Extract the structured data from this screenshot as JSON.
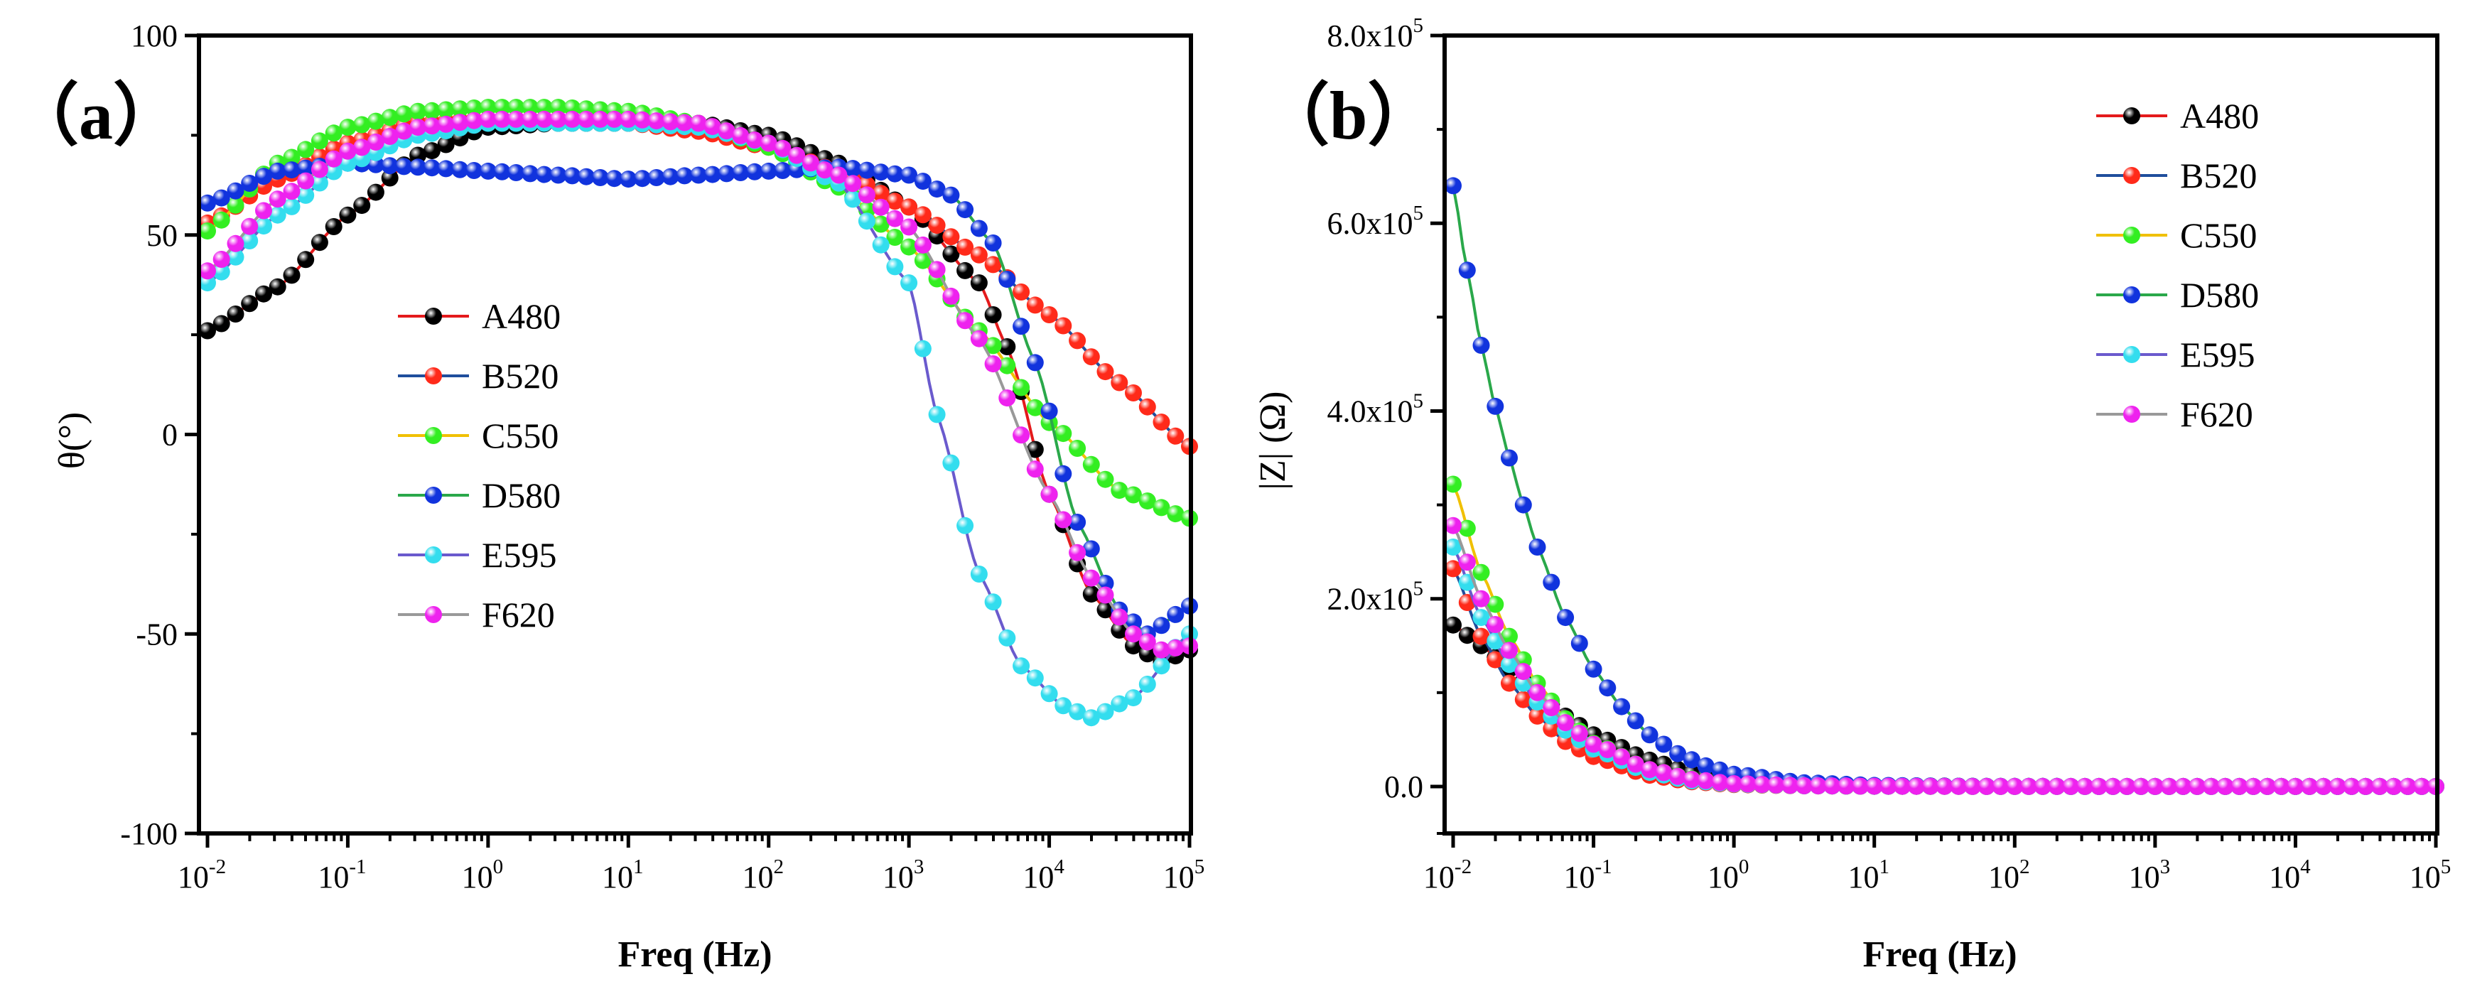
{
  "chart_data": [
    {
      "type": "line",
      "panel_label": "（a）",
      "xlabel": "Freq (Hz)",
      "ylabel": "θ(°)",
      "xscale": "log",
      "xlim": [
        0.01,
        100000
      ],
      "ylim": [
        -100,
        100
      ],
      "y_ticks": [
        -100,
        -50,
        0,
        50,
        100
      ],
      "x_ticks": [
        {
          "base": "10",
          "exp": "-2"
        },
        {
          "base": "10",
          "exp": "-1"
        },
        {
          "base": "10",
          "exp": "0"
        },
        {
          "base": "10",
          "exp": "1"
        },
        {
          "base": "10",
          "exp": "2"
        },
        {
          "base": "10",
          "exp": "3"
        },
        {
          "base": "10",
          "exp": "4"
        },
        {
          "base": "10",
          "exp": "5"
        }
      ],
      "legend_position": "center",
      "series": [
        {
          "name": "A480",
          "line_color": "#e41a1c",
          "marker_color": "#000000",
          "points": [
            [
              -2,
              26
            ],
            [
              -1.5,
              37
            ],
            [
              -1,
              55
            ],
            [
              -0.5,
              70
            ],
            [
              0,
              77
            ],
            [
              0.5,
              78
            ],
            [
              1,
              78
            ],
            [
              1.5,
              78
            ],
            [
              2,
              75
            ],
            [
              2.5,
              68
            ],
            [
              3,
              57
            ],
            [
              3.5,
              38
            ],
            [
              3.7,
              22
            ],
            [
              4,
              -15
            ],
            [
              4.3,
              -40
            ],
            [
              4.6,
              -53
            ],
            [
              4.8,
              -57
            ],
            [
              5,
              -54
            ]
          ]
        },
        {
          "name": "B520",
          "line_color": "#1f4e9c",
          "marker_color": "#ff2a1a",
          "points": [
            [
              -2,
              53
            ],
            [
              -1.5,
              64
            ],
            [
              -1,
              73
            ],
            [
              -0.5,
              78
            ],
            [
              0,
              79
            ],
            [
              0.5,
              79
            ],
            [
              1,
              78
            ],
            [
              1.5,
              76
            ],
            [
              2,
              72
            ],
            [
              2.5,
              66
            ],
            [
              3,
              57
            ],
            [
              3.5,
              45
            ],
            [
              4,
              30
            ],
            [
              4.5,
              13
            ],
            [
              5,
              -3
            ]
          ]
        },
        {
          "name": "C550",
          "line_color": "#f0c000",
          "marker_color": "#33ee22",
          "points": [
            [
              -2,
              51
            ],
            [
              -1.5,
              68
            ],
            [
              -1,
              77
            ],
            [
              -0.5,
              81
            ],
            [
              0,
              82
            ],
            [
              0.5,
              82
            ],
            [
              1,
              81
            ],
            [
              1.5,
              78
            ],
            [
              2,
              72
            ],
            [
              2.5,
              62
            ],
            [
              3,
              47
            ],
            [
              3.5,
              26
            ],
            [
              4,
              3
            ],
            [
              4.5,
              -14
            ],
            [
              5,
              -21
            ]
          ]
        },
        {
          "name": "D580",
          "line_color": "#2aa84a",
          "marker_color": "#1133dd",
          "points": [
            [
              -2,
              58
            ],
            [
              -1.5,
              66
            ],
            [
              -1,
              68
            ],
            [
              -0.5,
              67
            ],
            [
              0,
              66
            ],
            [
              0.5,
              65
            ],
            [
              1,
              64
            ],
            [
              1.5,
              65
            ],
            [
              2,
              66
            ],
            [
              2.5,
              67
            ],
            [
              3,
              65
            ],
            [
              3.3,
              60
            ],
            [
              3.6,
              48
            ],
            [
              3.9,
              18
            ],
            [
              4.2,
              -22
            ],
            [
              4.5,
              -44
            ],
            [
              4.7,
              -50
            ],
            [
              5,
              -43
            ]
          ]
        },
        {
          "name": "E595",
          "line_color": "#6a5acd",
          "marker_color": "#33ddee",
          "points": [
            [
              -2,
              38
            ],
            [
              -1.5,
              55
            ],
            [
              -1,
              68
            ],
            [
              -0.5,
              75
            ],
            [
              0,
              78
            ],
            [
              0.5,
              78
            ],
            [
              1,
              78
            ],
            [
              1.5,
              77
            ],
            [
              2,
              73
            ],
            [
              2.5,
              63
            ],
            [
              3,
              38
            ],
            [
              3.2,
              5
            ],
            [
              3.5,
              -35
            ],
            [
              3.8,
              -58
            ],
            [
              4.1,
              -68
            ],
            [
              4.3,
              -71
            ],
            [
              4.6,
              -66
            ],
            [
              5,
              -50
            ]
          ]
        },
        {
          "name": "F620",
          "line_color": "#999999",
          "marker_color": "#ee22ee",
          "points": [
            [
              -2,
              41
            ],
            [
              -1.5,
              59
            ],
            [
              -1,
              71
            ],
            [
              -0.5,
              77
            ],
            [
              0,
              79
            ],
            [
              0.5,
              79
            ],
            [
              1,
              79
            ],
            [
              1.5,
              78
            ],
            [
              2,
              73
            ],
            [
              2.5,
              65
            ],
            [
              3,
              52
            ],
            [
              3.5,
              24
            ],
            [
              4,
              -15
            ],
            [
              4.3,
              -36
            ],
            [
              4.6,
              -50
            ],
            [
              4.8,
              -54
            ],
            [
              5,
              -53
            ]
          ]
        }
      ]
    },
    {
      "type": "line",
      "panel_label": "（b）",
      "xlabel": "Freq (Hz)",
      "ylabel": "|Z| (Ω)",
      "xscale": "log",
      "xlim": [
        0.01,
        100000
      ],
      "ylim": [
        -50000,
        800000
      ],
      "y_ticks": [
        {
          "value": 0,
          "label": "0.0"
        },
        {
          "value": 200000,
          "mant": "2.0x10",
          "exp": "5"
        },
        {
          "value": 400000,
          "mant": "4.0x10",
          "exp": "5"
        },
        {
          "value": 600000,
          "mant": "6.0x10",
          "exp": "5"
        },
        {
          "value": 800000,
          "mant": "8.0x10",
          "exp": "5"
        }
      ],
      "x_ticks": [
        {
          "base": "10",
          "exp": "-2"
        },
        {
          "base": "10",
          "exp": "-1"
        },
        {
          "base": "10",
          "exp": "0"
        },
        {
          "base": "10",
          "exp": "1"
        },
        {
          "base": "10",
          "exp": "2"
        },
        {
          "base": "10",
          "exp": "3"
        },
        {
          "base": "10",
          "exp": "4"
        },
        {
          "base": "10",
          "exp": "5"
        }
      ],
      "legend_position": "top-right",
      "series": [
        {
          "name": "A480",
          "line_color": "#e41a1c",
          "marker_color": "#000000",
          "points": [
            [
              -2,
              172000
            ],
            [
              -1.8,
              150000
            ],
            [
              -1.6,
              125000
            ],
            [
              -1.4,
              100000
            ],
            [
              -1.2,
              75000
            ],
            [
              -1,
              55000
            ],
            [
              -0.6,
              28000
            ],
            [
              -0.3,
              14000
            ],
            [
              0,
              7000
            ],
            [
              0.5,
              2500
            ],
            [
              1,
              800
            ],
            [
              2,
              100
            ],
            [
              3,
              0
            ],
            [
              5,
              0
            ]
          ]
        },
        {
          "name": "B520",
          "line_color": "#1f4e9c",
          "marker_color": "#ff2a1a",
          "points": [
            [
              -2,
              232000
            ],
            [
              -1.8,
              160000
            ],
            [
              -1.6,
              110000
            ],
            [
              -1.4,
              75000
            ],
            [
              -1.2,
              48000
            ],
            [
              -1,
              32000
            ],
            [
              -0.6,
              12000
            ],
            [
              -0.3,
              5000
            ],
            [
              0,
              2000
            ],
            [
              0.5,
              600
            ],
            [
              1,
              200
            ],
            [
              2,
              0
            ],
            [
              5,
              0
            ]
          ]
        },
        {
          "name": "C550",
          "line_color": "#f0c000",
          "marker_color": "#33ee22",
          "points": [
            [
              -2,
              322000
            ],
            [
              -1.8,
              228000
            ],
            [
              -1.6,
              160000
            ],
            [
              -1.4,
              110000
            ],
            [
              -1.2,
              72000
            ],
            [
              -1,
              46000
            ],
            [
              -0.6,
              18000
            ],
            [
              -0.3,
              8000
            ],
            [
              0,
              3000
            ],
            [
              0.5,
              800
            ],
            [
              1,
              200
            ],
            [
              2,
              0
            ],
            [
              5,
              0
            ]
          ]
        },
        {
          "name": "D580",
          "line_color": "#2aa84a",
          "marker_color": "#1133dd",
          "points": [
            [
              -2,
              640000
            ],
            [
              -1.9,
              550000
            ],
            [
              -1.8,
              470000
            ],
            [
              -1.7,
              405000
            ],
            [
              -1.6,
              350000
            ],
            [
              -1.5,
              300000
            ],
            [
              -1.4,
              255000
            ],
            [
              -1.2,
              180000
            ],
            [
              -1,
              125000
            ],
            [
              -0.8,
              85000
            ],
            [
              -0.6,
              55000
            ],
            [
              -0.4,
              35000
            ],
            [
              -0.2,
              22000
            ],
            [
              0,
              13000
            ],
            [
              0.5,
              4000
            ],
            [
              1,
              1200
            ],
            [
              1.5,
              400
            ],
            [
              2,
              100
            ],
            [
              3,
              0
            ],
            [
              5,
              0
            ]
          ]
        },
        {
          "name": "E595",
          "line_color": "#6a5acd",
          "marker_color": "#33ddee",
          "points": [
            [
              -2,
              255000
            ],
            [
              -1.8,
              180000
            ],
            [
              -1.6,
              130000
            ],
            [
              -1.4,
              90000
            ],
            [
              -1.2,
              60000
            ],
            [
              -1,
              40000
            ],
            [
              -0.6,
              15000
            ],
            [
              -0.3,
              6000
            ],
            [
              0,
              2500
            ],
            [
              0.5,
              700
            ],
            [
              1,
              200
            ],
            [
              2,
              0
            ],
            [
              5,
              0
            ]
          ]
        },
        {
          "name": "F620",
          "line_color": "#999999",
          "marker_color": "#ee22ee",
          "points": [
            [
              -2,
              278000
            ],
            [
              -1.8,
              200000
            ],
            [
              -1.6,
              145000
            ],
            [
              -1.4,
              100000
            ],
            [
              -1.2,
              68000
            ],
            [
              -1,
              45000
            ],
            [
              -0.6,
              18000
            ],
            [
              -0.3,
              7500
            ],
            [
              0,
              3000
            ],
            [
              0.5,
              800
            ],
            [
              1,
              250
            ],
            [
              2,
              0
            ],
            [
              5,
              0
            ]
          ]
        }
      ]
    }
  ]
}
